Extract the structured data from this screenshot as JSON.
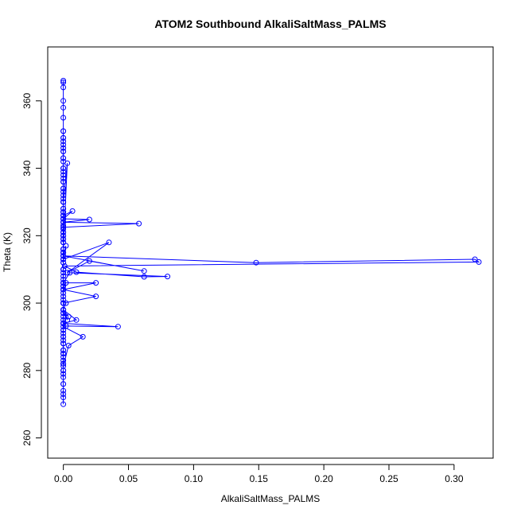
{
  "chart_data": {
    "type": "line",
    "title": "ATOM2 Southbound AlkaliSaltMass_PALMS",
    "xlabel": "AlkaliSaltMass_PALMS",
    "ylabel": "Theta (K)",
    "xlim": [
      -0.012,
      0.33
    ],
    "ylim": [
      254,
      376
    ],
    "xticks": [
      0.0,
      0.05,
      0.1,
      0.15,
      0.2,
      0.25,
      0.3
    ],
    "xtick_labels": [
      "0.00",
      "0.05",
      "0.10",
      "0.15",
      "0.20",
      "0.25",
      "0.30"
    ],
    "yticks": [
      260,
      280,
      300,
      320,
      340,
      360
    ],
    "ytick_labels": [
      "260",
      "280",
      "300",
      "320",
      "340",
      "360"
    ],
    "grid": false,
    "legend": "none",
    "marker": "open-circle",
    "color": "#0000ff",
    "series": [
      {
        "x": [
          0.0,
          0.0,
          0.0,
          0.0,
          0.0,
          0.0,
          0.0,
          0.0,
          0.0,
          0.0,
          0.0,
          0.0,
          0.0,
          0.0,
          0.0,
          0.0,
          0.0,
          0.0,
          0.0,
          0.0,
          0.0,
          0.0,
          0.0,
          0.0,
          0.0,
          0.0,
          0.0,
          0.0,
          0.0,
          0.0,
          0.0,
          0.0,
          0.0,
          0.0,
          0.0,
          0.0,
          0.0,
          0.0,
          0.0,
          0.0,
          0.0,
          0.0,
          0.0,
          0.0,
          0.0,
          0.0,
          0.0,
          0.0,
          0.0,
          0.0,
          0.0,
          0.0,
          0.0,
          0.0,
          0.0,
          0.0,
          0.0,
          0.0,
          0.0,
          0.0,
          0.0,
          0.0,
          0.0,
          0.0,
          0.0,
          0.0,
          0.0,
          0.0,
          0.0,
          0.0,
          0.0,
          0.0,
          0.0,
          0.0,
          0.0,
          0.0,
          0.0,
          0.0,
          0.0,
          0.0,
          0.0,
          0.0,
          0.0,
          0.0,
          0.0,
          0.0,
          0.0,
          0.0,
          0.0,
          0.0,
          0.0,
          0.0,
          0.0,
          0.0,
          0.0,
          0.0,
          0.0,
          0.0,
          0.0,
          0.003,
          0.0,
          0.0,
          0.0,
          0.0,
          0.0,
          0.0,
          0.007,
          0.0,
          0.02,
          0.0,
          0.058,
          0.0,
          0.0,
          0.0,
          0.0,
          0.0,
          0.0,
          0.0,
          0.0,
          0.002,
          0.0,
          0.035,
          0.003,
          0.02,
          0.062,
          0.0,
          0.148,
          0.316,
          0.319,
          0.001,
          0.01,
          0.062,
          0.08,
          0.005,
          0.0,
          0.025,
          0.0,
          0.0,
          0.002,
          0.0,
          0.025,
          0.0,
          0.0,
          0.002,
          0.0,
          0.004,
          0.0,
          0.003,
          0.0,
          0.01,
          0.0,
          0.042,
          0.002,
          0.0,
          0.015,
          0.004,
          0.0,
          0.0,
          0.0,
          0.0,
          0.0,
          0.0,
          0.0,
          0.0,
          0.0,
          0.0,
          0.0,
          0.0,
          0.0,
          0.0
        ],
        "y": [
          366,
          365.5,
          364,
          360,
          358,
          355,
          351,
          349,
          347,
          345,
          343,
          340,
          338,
          336,
          334,
          332,
          330,
          328,
          326,
          324,
          322,
          320,
          318,
          316,
          314,
          312,
          310,
          308,
          306,
          304,
          302,
          300,
          298,
          296,
          294,
          292,
          290,
          288,
          286,
          284,
          282,
          280,
          278,
          276,
          274,
          272,
          270,
          273,
          276,
          279,
          282,
          285,
          288,
          291,
          294,
          297,
          300,
          303,
          306,
          309,
          312,
          315,
          318,
          321,
          324,
          327,
          330,
          333,
          336,
          339,
          342,
          345,
          348,
          351,
          349,
          346,
          343,
          340,
          337,
          334,
          331,
          328,
          325,
          322,
          319,
          316,
          313,
          310,
          307,
          304,
          301,
          298,
          295,
          292,
          289,
          286,
          283,
          280,
          316,
          341.5,
          330,
          327,
          321,
          319,
          326,
          326,
          327.3,
          325,
          324.8,
          324,
          323.6,
          322.5,
          323,
          320,
          318,
          316,
          315,
          313,
          314,
          317,
          313,
          318,
          309,
          312.5,
          309.5,
          314,
          312,
          313,
          312.2,
          311,
          309.2,
          307.8,
          307.9,
          309,
          306,
          306,
          304,
          305,
          306,
          304,
          302,
          300,
          298,
          300,
          298,
          296,
          297,
          295,
          298,
          295,
          294,
          293,
          293.2,
          293,
          290,
          287.4,
          281.3,
          288,
          285,
          282,
          280,
          286,
          290,
          294,
          300,
          305,
          310,
          315,
          320,
          325
        ]
      }
    ]
  }
}
